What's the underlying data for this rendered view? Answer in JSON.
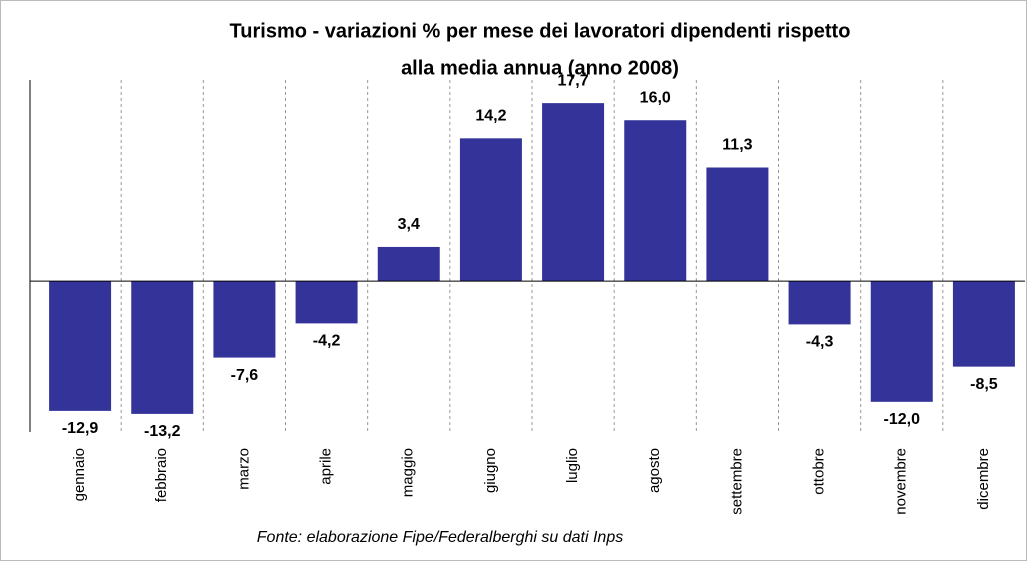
{
  "chart_data": {
    "type": "bar",
    "title": [
      "Turismo - variazioni % per mese dei lavoratori dipendenti rispetto",
      "alla media annua (anno 2008)"
    ],
    "categories": [
      "gennaio",
      "febbraio",
      "marzo",
      "aprile",
      "maggio",
      "giugno",
      "luglio",
      "agosto",
      "settembre",
      "ottobre",
      "novembre",
      "dicembre"
    ],
    "values": [
      -12.9,
      -13.2,
      -7.6,
      -4.2,
      3.4,
      14.2,
      17.7,
      16.0,
      11.3,
      -4.3,
      -12.0,
      -8.5
    ],
    "value_labels": [
      "-12,9",
      "-13,2",
      "-7,6",
      "-4,2",
      "3,4",
      "14,2",
      "17,7",
      "16,0",
      "11,3",
      "-4,3",
      "-12,0",
      "-8,5"
    ],
    "color": "#333399",
    "ylim": [
      -15,
      20
    ],
    "annotation": "Fonte: elaborazione Fipe/Federalberghi su dati Inps"
  }
}
